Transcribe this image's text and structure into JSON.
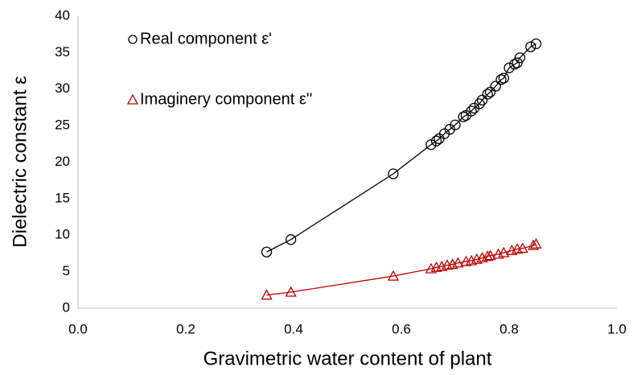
{
  "chart_data": {
    "type": "scatter",
    "xlabel": "Gravimetric water content of plant",
    "ylabel": "Dielectric constant ε",
    "xlim": [
      0,
      1
    ],
    "xticks": [
      {
        "value": 0,
        "label": "0.0"
      },
      0.2,
      0.4,
      0.6,
      0.8,
      {
        "value": 1,
        "label": "1.0"
      }
    ],
    "ylim": [
      0,
      40
    ],
    "yticks": [
      0,
      5,
      10,
      15,
      20,
      25,
      30,
      35,
      40
    ],
    "grid": false,
    "legend": "upper left",
    "trendline": true,
    "series": [
      {
        "name": "Real component ε'",
        "color": "#000000",
        "marker": "circle",
        "x": [
          0.35,
          0.395,
          0.585,
          0.655,
          0.665,
          0.67,
          0.68,
          0.69,
          0.7,
          0.715,
          0.72,
          0.73,
          0.735,
          0.745,
          0.75,
          0.76,
          0.765,
          0.775,
          0.785,
          0.79,
          0.8,
          0.81,
          0.815,
          0.82,
          0.84,
          0.85
        ],
        "values": [
          7.7,
          9.4,
          18.4,
          22.4,
          22.9,
          23.2,
          23.9,
          24.5,
          25.1,
          26.2,
          26.4,
          27.0,
          27.4,
          28.0,
          28.5,
          29.3,
          29.6,
          30.4,
          31.3,
          31.5,
          32.9,
          33.4,
          33.6,
          34.3,
          35.8,
          36.2
        ]
      },
      {
        "name": "Imaginery component ε''",
        "color": "#c00000",
        "marker": "triangle",
        "x": [
          0.35,
          0.395,
          0.585,
          0.655,
          0.665,
          0.675,
          0.685,
          0.695,
          0.705,
          0.72,
          0.73,
          0.74,
          0.75,
          0.76,
          0.765,
          0.78,
          0.79,
          0.805,
          0.815,
          0.825,
          0.845,
          0.85
        ],
        "values": [
          1.8,
          2.2,
          4.4,
          5.4,
          5.6,
          5.7,
          5.9,
          6.0,
          6.2,
          6.4,
          6.5,
          6.7,
          6.9,
          7.1,
          7.2,
          7.4,
          7.6,
          7.9,
          8.1,
          8.2,
          8.6,
          8.8
        ]
      }
    ]
  }
}
